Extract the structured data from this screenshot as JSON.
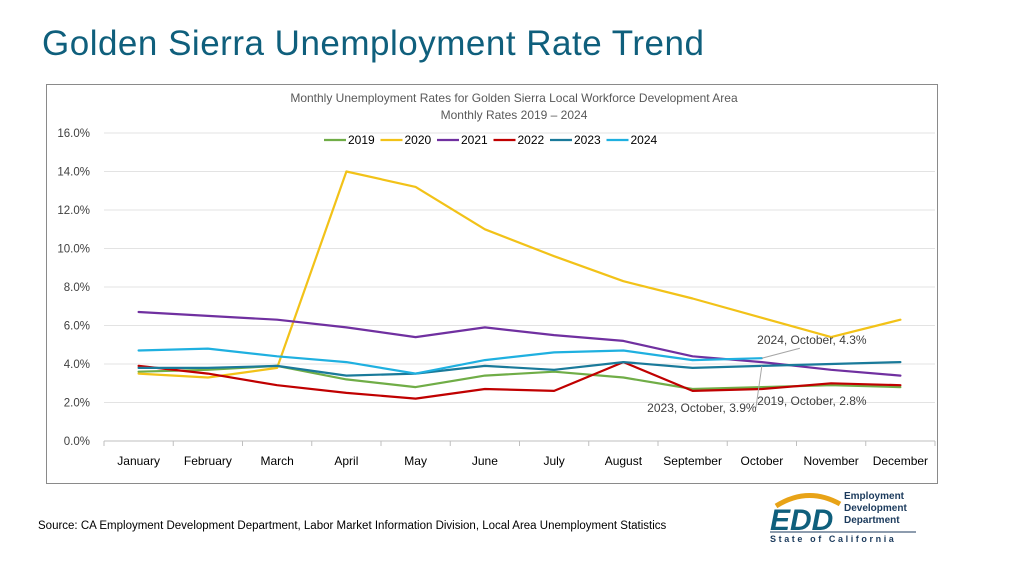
{
  "slide_title": "Golden Sierra Unemployment Rate Trend",
  "source": "Source: CA Employment Development Department, Labor Market Information Division, Local Area Unemployment Statistics",
  "logo": {
    "text_main": "EDD",
    "line1": "Employment",
    "line2": "Development",
    "line3": "Department",
    "tagline": "State of California"
  },
  "colors": {
    "title": "#0f5f7c",
    "2019": "#70ad47",
    "2020": "#f2c218",
    "2021": "#7030a0",
    "2022": "#c00000",
    "2023": "#1a7a9a",
    "2024": "#1fb0e0"
  },
  "chart_data": {
    "type": "line",
    "title": "Monthly Unemployment Rates for Golden Sierra Local Workforce Development Area",
    "subtitle": "Monthly Rates 2019 – 2024",
    "categories": [
      "January",
      "February",
      "March",
      "April",
      "May",
      "June",
      "July",
      "August",
      "September",
      "October",
      "November",
      "December"
    ],
    "ylim": [
      0,
      16
    ],
    "yticks": [
      "0.0%",
      "2.0%",
      "4.0%",
      "6.0%",
      "8.0%",
      "10.0%",
      "12.0%",
      "14.0%",
      "16.0%"
    ],
    "grid": true,
    "legend_position": "top",
    "series": [
      {
        "name": "2019",
        "color": "#70ad47",
        "values": [
          3.6,
          3.7,
          3.9,
          3.2,
          2.8,
          3.4,
          3.6,
          3.3,
          2.7,
          2.8,
          2.9,
          2.8
        ]
      },
      {
        "name": "2020",
        "color": "#f2c218",
        "values": [
          3.5,
          3.3,
          3.8,
          14.0,
          13.2,
          11.0,
          9.6,
          8.3,
          7.4,
          6.4,
          5.4,
          6.3
        ]
      },
      {
        "name": "2021",
        "color": "#7030a0",
        "values": [
          6.7,
          6.5,
          6.3,
          5.9,
          5.4,
          5.9,
          5.5,
          5.2,
          4.4,
          4.1,
          3.7,
          3.4
        ]
      },
      {
        "name": "2022",
        "color": "#c00000",
        "values": [
          3.9,
          3.5,
          2.9,
          2.5,
          2.2,
          2.7,
          2.6,
          4.1,
          2.6,
          2.7,
          3.0,
          2.9
        ]
      },
      {
        "name": "2023",
        "color": "#1a7a9a",
        "values": [
          3.8,
          3.8,
          3.9,
          3.4,
          3.5,
          3.9,
          3.7,
          4.1,
          3.8,
          3.9,
          4.0,
          4.1
        ]
      },
      {
        "name": "2024",
        "color": "#1fb0e0",
        "values": [
          4.7,
          4.8,
          4.4,
          4.1,
          3.5,
          4.2,
          4.6,
          4.7,
          4.2,
          4.3,
          null,
          null
        ]
      }
    ],
    "annotations": [
      {
        "text": "2024, October, 4.3%",
        "series": "2024",
        "category": "October"
      },
      {
        "text": "2019, October, 2.8%",
        "series": "2019",
        "category": "October"
      },
      {
        "text": "2023, October, 3.9%",
        "series": "2023",
        "category": "October"
      }
    ]
  }
}
